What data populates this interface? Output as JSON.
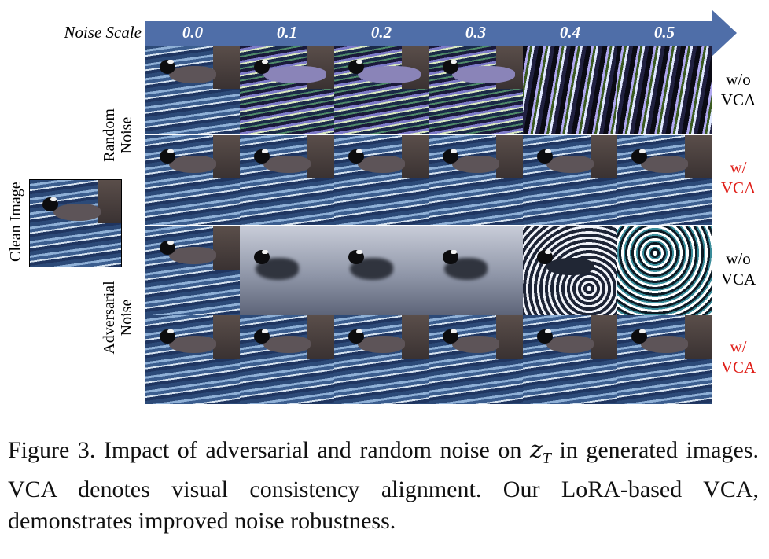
{
  "header": {
    "noise_scale_label": "Noise Scale",
    "scales": [
      "0.0",
      "0.1",
      "0.2",
      "0.3",
      "0.4",
      "0.5"
    ],
    "arrow_color": "#4f6ea8"
  },
  "left_labels": {
    "clean_image": "Clean Image",
    "random_noise": [
      "Random",
      "Noise"
    ],
    "adversarial_noise": [
      "Adversarial",
      "Noise"
    ]
  },
  "right_labels": [
    {
      "line1": "w/o",
      "line2": "VCA",
      "color": "#000000"
    },
    {
      "line1": "w/",
      "line2": "VCA",
      "color": "#e0201a"
    },
    {
      "line1": "w/o",
      "line2": "VCA",
      "color": "#000000"
    },
    {
      "line1": "w/",
      "line2": "VCA",
      "color": "#e0201a"
    }
  ],
  "grid_rows": [
    {
      "group": "Random Noise",
      "setting": "w/o VCA",
      "appearance": [
        "clean",
        "noisy",
        "noisy",
        "noisy",
        "heavy",
        "heavy"
      ]
    },
    {
      "group": "Random Noise",
      "setting": "w/ VCA",
      "appearance": [
        "clean",
        "clean",
        "clean",
        "clean",
        "clean",
        "clean"
      ]
    },
    {
      "group": "Adversarial Noise",
      "setting": "w/o VCA",
      "appearance": [
        "clean",
        "smooth",
        "smooth",
        "smooth",
        "ripple",
        "pattern"
      ]
    },
    {
      "group": "Adversarial Noise",
      "setting": "w/ VCA",
      "appearance": [
        "clean",
        "clean",
        "clean",
        "clean",
        "clean",
        "clean"
      ]
    }
  ],
  "caption": {
    "prefix": "Figure 3.  Impact of adversarial and random noise on ",
    "math": "z",
    "math_sub": "T",
    "suffix": " in generated images.  VCA denotes visual consistency alignment.  Our LoRA-based VCA, demonstrates improved noise robustness."
  }
}
